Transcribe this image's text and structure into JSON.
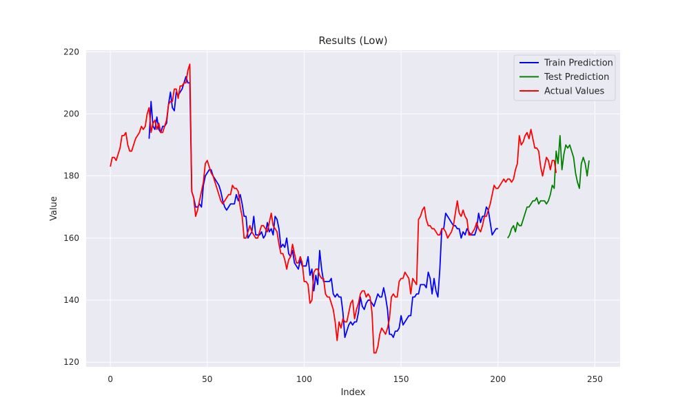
{
  "chart_data": {
    "type": "line",
    "title": "Results (Low)",
    "xlabel": "Index",
    "ylabel": "Value",
    "xlim": [
      -12.5,
      263
    ],
    "ylim": [
      118.5,
      220.5
    ],
    "xticks": [
      0,
      50,
      100,
      150,
      200,
      250
    ],
    "yticks": [
      120,
      140,
      160,
      180,
      200,
      220
    ],
    "grid": true,
    "legend": "top-right",
    "colors": {
      "Train Prediction": "#0000ff",
      "Test Prediction": "#008000",
      "Actual Values": "#ff0000",
      "plot_bg": "#eaeaf2",
      "grid": "#ffffff"
    },
    "series": [
      {
        "name": "Train Prediction",
        "x_start": 20,
        "values": [
          192,
          204,
          196,
          195,
          199,
          195,
          194,
          196,
          196,
          197,
          203,
          207,
          202,
          201,
          207,
          206,
          207,
          208,
          210,
          212,
          210,
          210,
          175,
          173,
          170,
          170,
          171,
          170,
          177,
          180,
          181,
          182,
          182,
          180,
          179,
          178,
          177,
          175,
          172,
          170,
          169,
          170,
          171,
          171,
          171,
          174,
          172,
          174,
          171,
          167,
          167,
          160,
          161,
          162,
          167,
          161,
          161,
          161,
          162,
          160,
          161,
          165,
          162,
          163,
          161,
          167,
          166,
          163,
          157,
          158,
          157,
          160,
          155,
          154,
          156,
          152,
          151,
          150,
          153,
          151,
          151,
          151,
          154,
          148,
          150,
          143,
          148,
          145,
          156,
          150,
          146,
          146,
          146,
          146,
          147,
          142,
          141,
          142,
          141,
          141,
          136,
          128,
          130,
          132,
          133,
          132,
          133,
          133,
          136,
          141,
          138,
          137,
          139,
          140,
          140,
          139,
          138,
          140,
          142,
          141,
          141,
          144,
          141,
          137,
          129,
          129,
          128,
          130,
          130,
          131,
          135,
          132,
          133,
          134,
          135,
          135,
          141,
          141,
          142,
          142,
          145,
          145,
          145,
          144,
          149,
          147,
          142,
          147,
          143,
          141,
          150,
          163,
          163,
          168,
          167,
          166,
          165,
          164,
          164,
          163,
          163,
          160,
          162,
          161,
          163,
          162,
          161,
          161,
          161,
          163,
          168,
          165,
          167,
          167,
          170,
          169,
          165,
          161,
          162,
          163,
          163
        ]
      },
      {
        "name": "Test Prediction",
        "x_start": 205,
        "values": [
          160,
          161,
          163,
          164,
          162,
          165,
          164,
          164,
          166,
          168,
          170,
          170,
          171,
          172,
          172,
          173,
          171,
          172,
          172,
          172,
          171,
          172,
          174,
          177,
          176,
          188,
          184,
          193,
          182,
          187,
          190,
          189,
          190,
          188,
          186,
          181,
          178,
          176,
          184,
          186,
          184,
          180,
          185
        ]
      },
      {
        "name": "Actual Values",
        "x_start": 0,
        "values": [
          183,
          186,
          186,
          185,
          187,
          189,
          193,
          193,
          194,
          190,
          188,
          188,
          190,
          192,
          193,
          194,
          196,
          195,
          196,
          200,
          202,
          194,
          197,
          198,
          195,
          197,
          194,
          194,
          196,
          198,
          203,
          204,
          204,
          208,
          208,
          205,
          209,
          209,
          210,
          210,
          214,
          216,
          175,
          173,
          167,
          169,
          172,
          175,
          178,
          184,
          185,
          183,
          181,
          180,
          178,
          176,
          174,
          172,
          171,
          172,
          173,
          174,
          174,
          177,
          176,
          176,
          175,
          170,
          167,
          160,
          160,
          162,
          164,
          162,
          161,
          160,
          160,
          162,
          164,
          164,
          163,
          162,
          165,
          168,
          164,
          163,
          162,
          158,
          155,
          155,
          153,
          150,
          153,
          154,
          158,
          155,
          152,
          152,
          154,
          152,
          146,
          146,
          145,
          139,
          140,
          149,
          150,
          150,
          148,
          147,
          147,
          142,
          141,
          141,
          139,
          137,
          133,
          127,
          133,
          131,
          134,
          133,
          133,
          136,
          139,
          140,
          134,
          137,
          139,
          142,
          143,
          143,
          141,
          142,
          141,
          136,
          123,
          123,
          125,
          129,
          131,
          130,
          129,
          131,
          134,
          141,
          142,
          141,
          141,
          146,
          147,
          147,
          149,
          148,
          147,
          142,
          147,
          146,
          145,
          166,
          167,
          169,
          170,
          166,
          164,
          164,
          163,
          163,
          162,
          161,
          161,
          163,
          163,
          162,
          160,
          161,
          162,
          164,
          168,
          172,
          168,
          167,
          169,
          167,
          166,
          161,
          161,
          162,
          163,
          165,
          163,
          162,
          164,
          167,
          167,
          169,
          171,
          174,
          177,
          176,
          176,
          177,
          178,
          179,
          178,
          179,
          179,
          178,
          179,
          182,
          184,
          193,
          190,
          191,
          193,
          194,
          192,
          195,
          192,
          189,
          189,
          188,
          183,
          180,
          183,
          186,
          185,
          182,
          185,
          185,
          181
        ]
      }
    ]
  }
}
